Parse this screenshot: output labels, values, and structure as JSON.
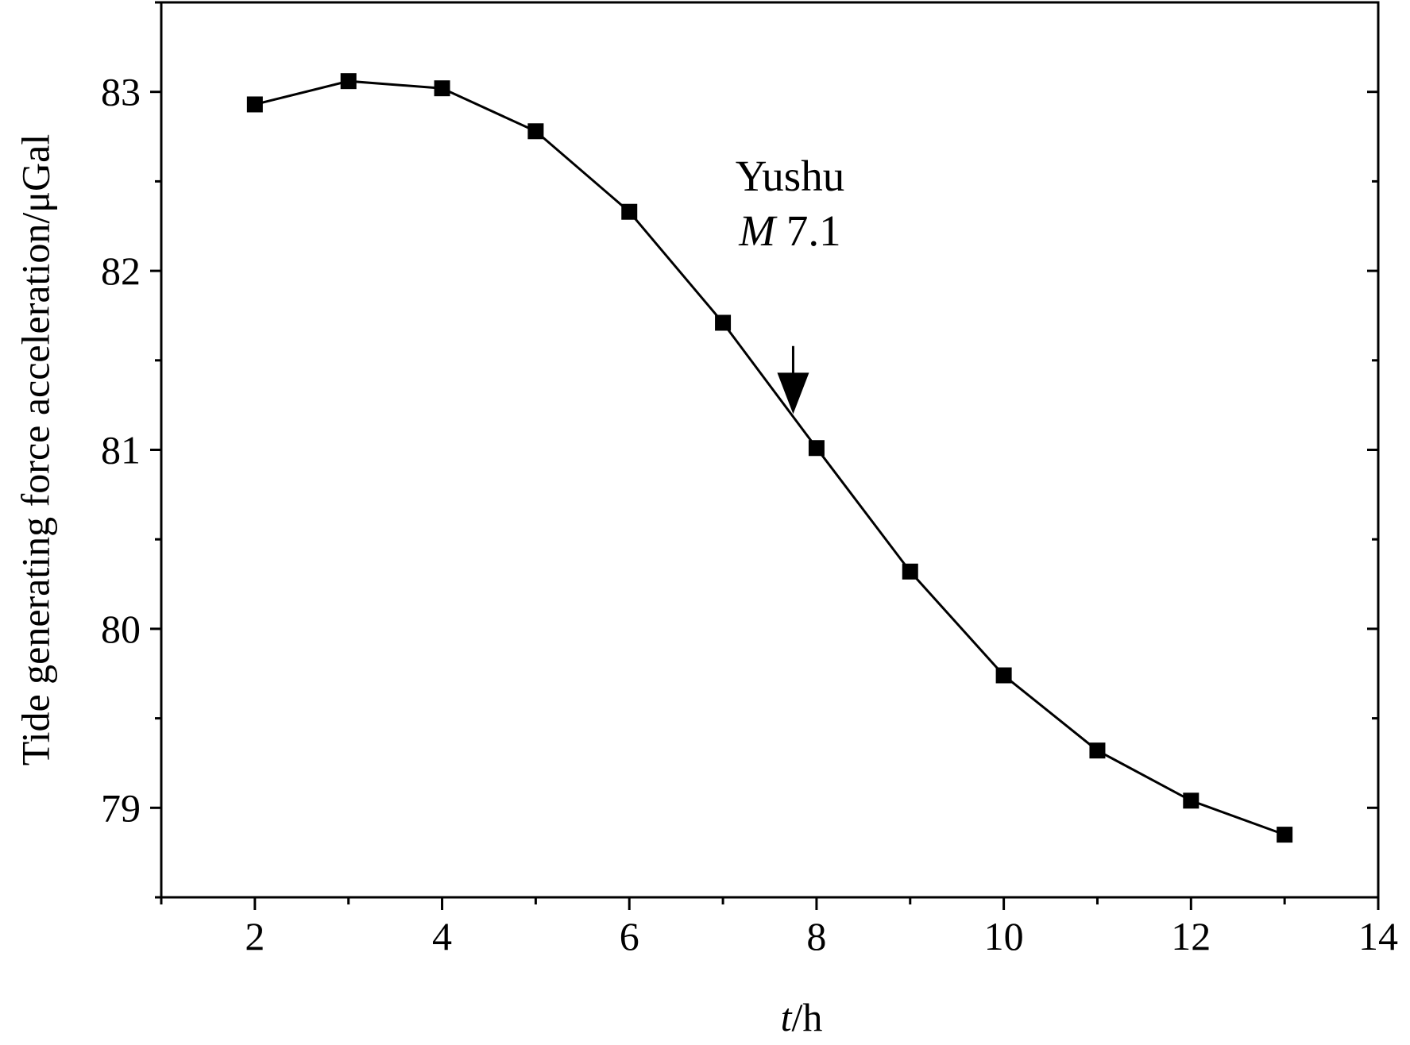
{
  "chart_data": {
    "type": "line",
    "title": "",
    "xlabel": {
      "italic": "t",
      "rest": "/h"
    },
    "ylabel": "Tide generating force acceleration/μGal",
    "xlim": [
      1,
      14
    ],
    "ylim": [
      78.5,
      83.5
    ],
    "x_ticks": [
      2,
      4,
      6,
      8,
      10,
      12,
      14
    ],
    "x_minor_ticks": [
      1,
      3,
      5,
      7,
      9,
      11,
      13
    ],
    "y_ticks": [
      79,
      80,
      81,
      82,
      83
    ],
    "y_minor_ticks": [
      78.5,
      79.5,
      80.5,
      81.5,
      82.5,
      83.5
    ],
    "grid": false,
    "legend": "none",
    "series": [
      {
        "marker": "square",
        "color": "#000000",
        "x": [
          2,
          3,
          4,
          5,
          6,
          7,
          8,
          9,
          10,
          11,
          12,
          13
        ],
        "y": [
          82.93,
          83.06,
          83.02,
          82.78,
          82.33,
          81.71,
          81.01,
          80.32,
          79.74,
          79.32,
          79.04,
          78.85
        ]
      }
    ],
    "annotations": [
      {
        "line1": "Yushu",
        "line2_italic": "M",
        "line2_rest": " 7.1",
        "arrow_x": 7.75,
        "arrow_y_top": 81.58,
        "arrow_y_tip": 81.2
      }
    ]
  }
}
